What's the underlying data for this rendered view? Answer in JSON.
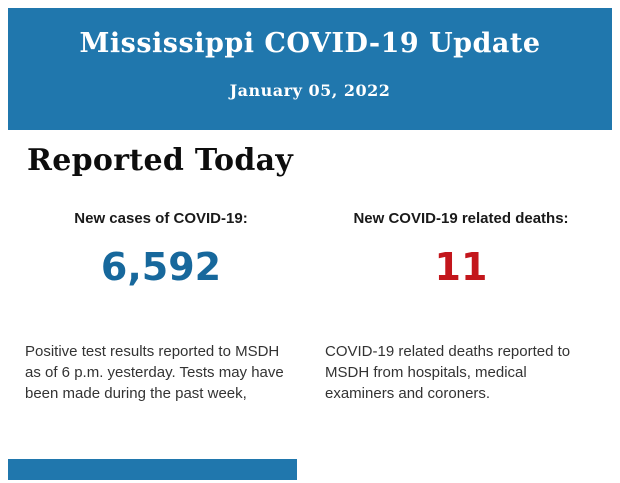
{
  "theme": {
    "header_blue": "#2077ad",
    "cases_blue": "#17689c",
    "deaths_red": "#c3161c",
    "body_text": "#333333"
  },
  "header": {
    "title": "Mississippi COVID-19 Update",
    "date": "January 05, 2022"
  },
  "section": {
    "title": "Reported Today"
  },
  "stats": [
    {
      "label": "New cases of COVID-19:",
      "value": "6,592",
      "description": "Positive test results reported to MSDH as of 6 p.m. yesterday. Tests may have been made during the past week,"
    },
    {
      "label": "New COVID-19 related deaths:",
      "value": "11",
      "description": "COVID-19 related deaths reported to MSDH from hospitals, medical examiners and coroners."
    }
  ],
  "footer": {
    "next_section_bar": "partial blue bar of following section, cut off at screenshot bottom"
  }
}
